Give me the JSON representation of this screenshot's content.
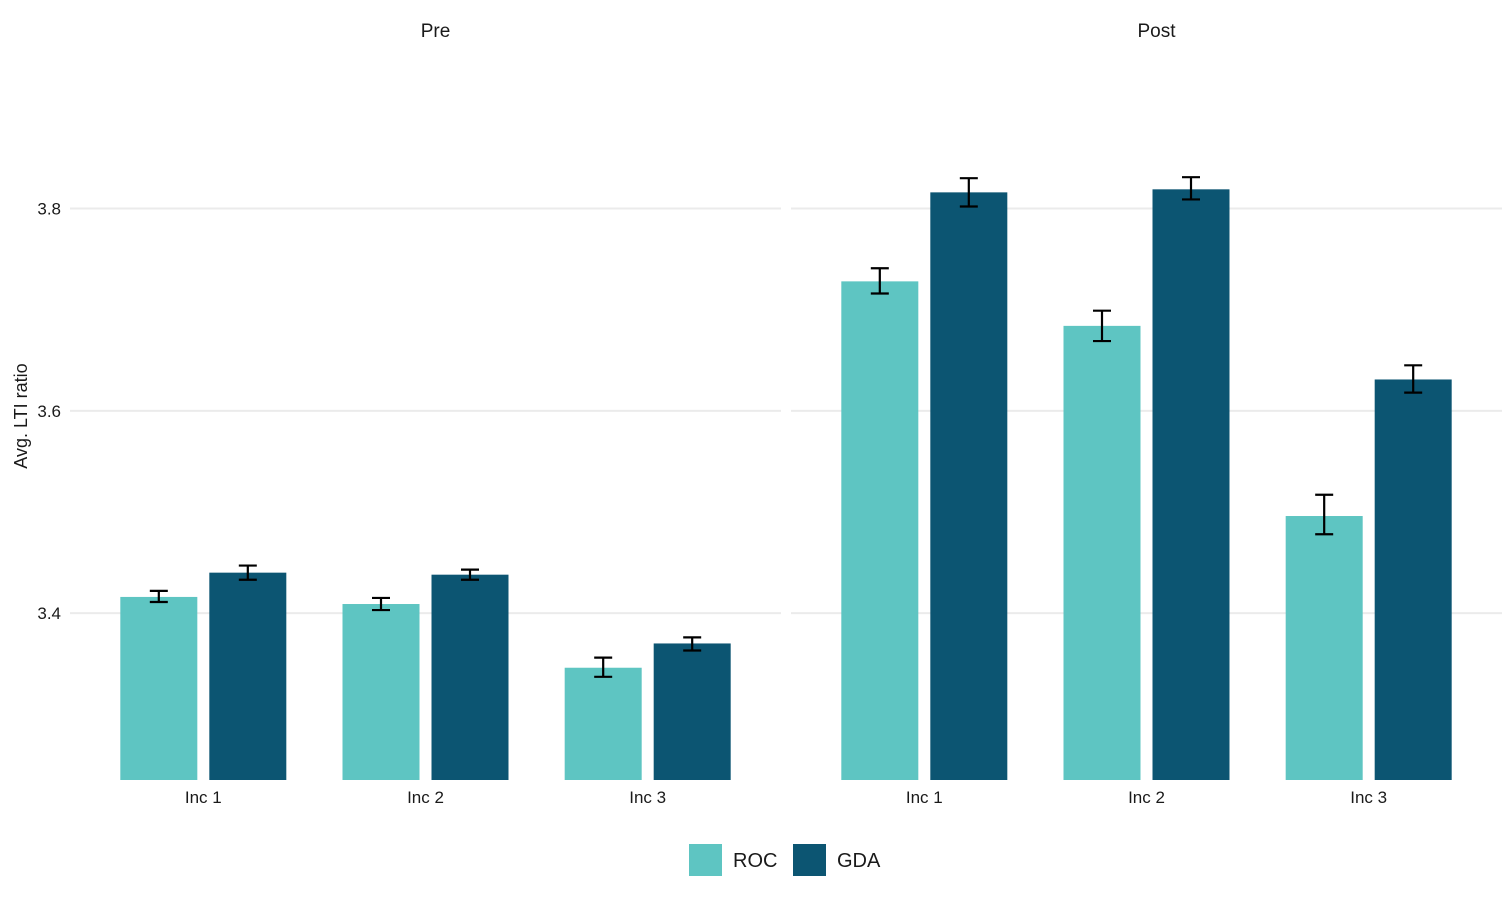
{
  "chart_data": {
    "type": "bar",
    "ylabel": "Avg. LTI ratio",
    "xlabel": "",
    "ylim": [
      3.235,
      3.935
    ],
    "y_ticks": [
      3.4,
      3.6,
      3.8
    ],
    "grid": true,
    "legend_position": "bottom",
    "categories": [
      "Inc 1",
      "Inc 2",
      "Inc 3"
    ],
    "facets": [
      {
        "label": "Pre",
        "series": [
          {
            "name": "ROC",
            "values": [
              3.416,
              3.409,
              3.346
            ],
            "err_low": [
              3.411,
              3.403,
              3.337
            ],
            "err_high": [
              3.422,
              3.415,
              3.356
            ]
          },
          {
            "name": "GDA",
            "values": [
              3.44,
              3.438,
              3.37
            ],
            "err_low": [
              3.433,
              3.433,
              3.363
            ],
            "err_high": [
              3.447,
              3.443,
              3.376
            ]
          }
        ]
      },
      {
        "label": "Post",
        "series": [
          {
            "name": "ROC",
            "values": [
              3.728,
              3.684,
              3.496
            ],
            "err_low": [
              3.716,
              3.669,
              3.478
            ],
            "err_high": [
              3.741,
              3.699,
              3.517
            ]
          },
          {
            "name": "GDA",
            "values": [
              3.816,
              3.819,
              3.631
            ],
            "err_low": [
              3.802,
              3.809,
              3.618
            ],
            "err_high": [
              3.83,
              3.831,
              3.645
            ]
          }
        ]
      }
    ],
    "colors": {
      "ROC": "#5ec5c2",
      "GDA": "#0c5572"
    }
  }
}
